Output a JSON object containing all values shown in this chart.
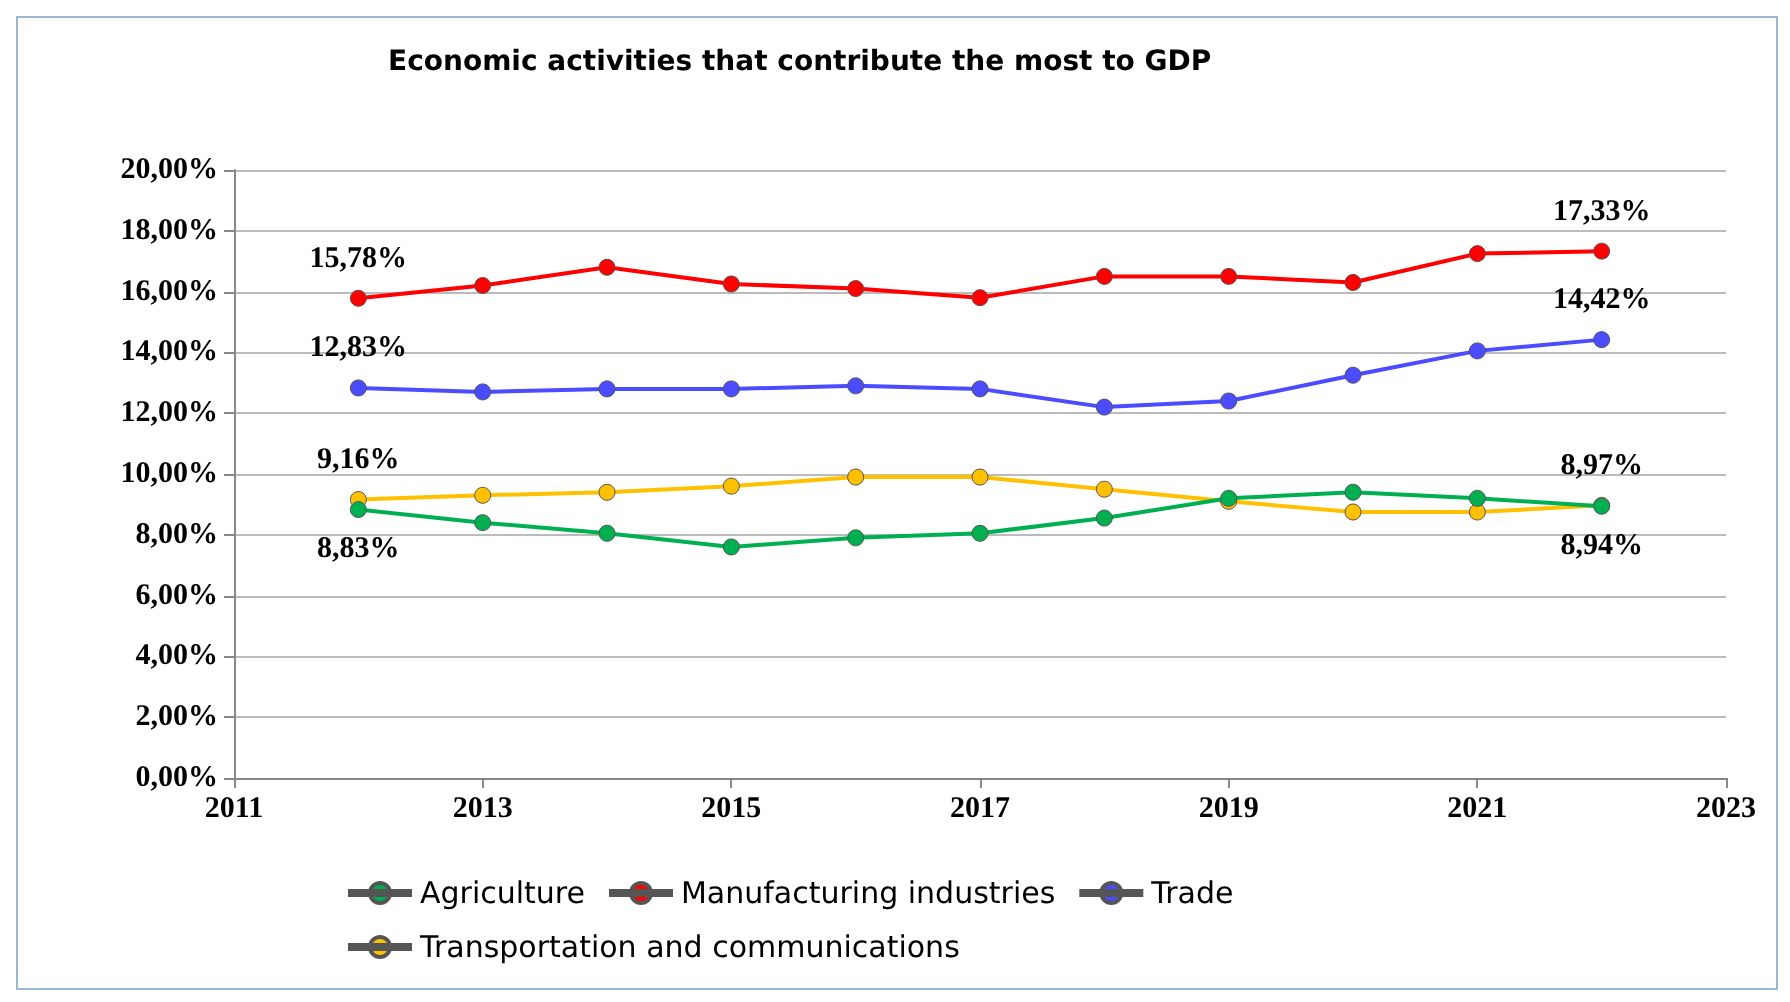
{
  "chart_data": {
    "type": "line",
    "title": "Economic activities that contribute the most to GDP",
    "x": [
      2012,
      2013,
      2014,
      2015,
      2016,
      2017,
      2018,
      2019,
      2020,
      2021,
      2022
    ],
    "xlim": [
      2011,
      2023
    ],
    "xticks": [
      2011,
      2013,
      2015,
      2017,
      2019,
      2021,
      2023
    ],
    "ylim": [
      0,
      20
    ],
    "yticks": [
      {
        "value": 0,
        "label": "0,00%"
      },
      {
        "value": 2,
        "label": "2,00%"
      },
      {
        "value": 4,
        "label": "4,00%"
      },
      {
        "value": 6,
        "label": "6,00%"
      },
      {
        "value": 8,
        "label": "8,00%"
      },
      {
        "value": 10,
        "label": "10,00%"
      },
      {
        "value": 12,
        "label": "12,00%"
      },
      {
        "value": 14,
        "label": "14,00%"
      },
      {
        "value": 16,
        "label": "16,00%"
      },
      {
        "value": 18,
        "label": "18,00%"
      },
      {
        "value": 20,
        "label": "20,00%"
      }
    ],
    "series": [
      {
        "name": "Agriculture",
        "color": "#00b050",
        "values": [
          8.83,
          8.4,
          8.05,
          7.6,
          7.9,
          8.05,
          8.55,
          9.2,
          9.4,
          9.2,
          8.94
        ],
        "value_labels": [
          "8,83%",
          null,
          null,
          null,
          null,
          null,
          null,
          null,
          null,
          null,
          "8,94%"
        ]
      },
      {
        "name": "Manufacturing industries",
        "color": "#ff0000",
        "values": [
          15.78,
          16.2,
          16.8,
          16.25,
          16.1,
          15.8,
          16.5,
          16.5,
          16.3,
          17.25,
          17.33
        ],
        "value_labels": [
          "15,78%",
          null,
          null,
          null,
          null,
          null,
          null,
          null,
          null,
          null,
          "17,33%"
        ]
      },
      {
        "name": "Trade",
        "color": "#4b4bff",
        "values": [
          12.83,
          12.7,
          12.8,
          12.8,
          12.9,
          12.8,
          12.2,
          12.4,
          13.25,
          14.05,
          14.42
        ],
        "value_labels": [
          "12,83%",
          null,
          null,
          null,
          null,
          null,
          null,
          null,
          null,
          null,
          "14,42%"
        ]
      },
      {
        "name": "Transportation and communications",
        "color": "#ffc000",
        "values": [
          9.16,
          9.3,
          9.4,
          9.6,
          9.9,
          9.9,
          9.5,
          9.1,
          8.75,
          8.75,
          8.97
        ],
        "value_labels": [
          "9,16%",
          null,
          null,
          null,
          null,
          null,
          null,
          null,
          null,
          null,
          "8,97%"
        ]
      }
    ],
    "grid": "y",
    "legend": "bottom",
    "marker": "circle",
    "line_style": "solid"
  }
}
